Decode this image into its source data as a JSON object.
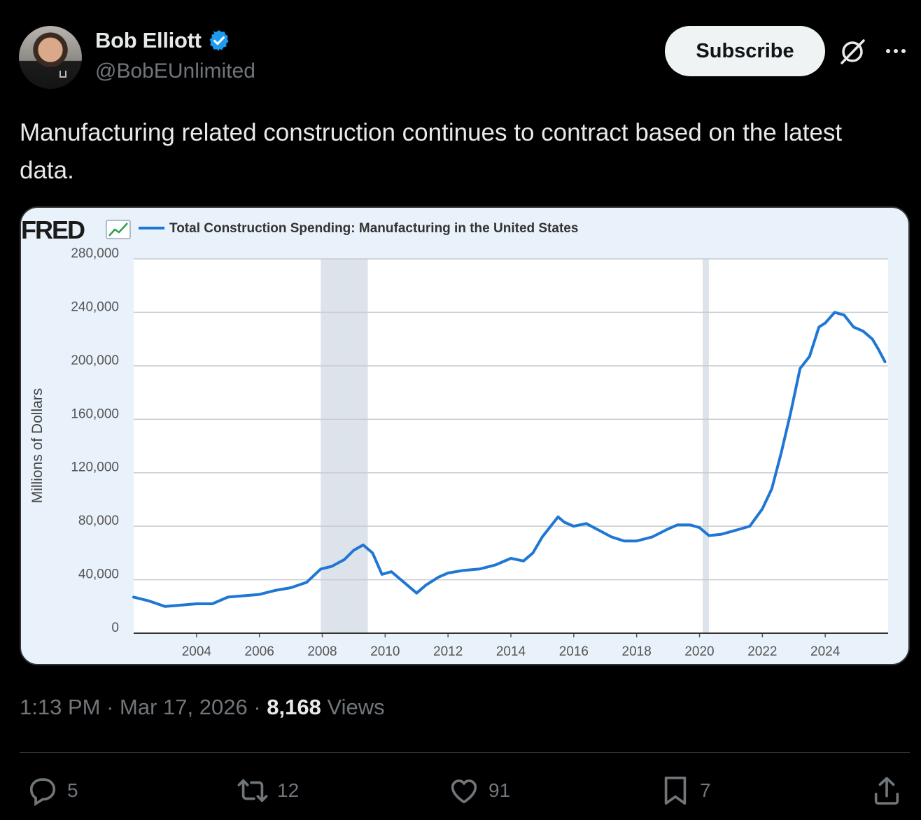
{
  "author": {
    "name": "Bob Elliott",
    "handle": "@BobEUnlimited",
    "verified": true
  },
  "header": {
    "subscribe_label": "Subscribe"
  },
  "tweet": {
    "text": "Manufacturing related construction continues to contract based on the latest data.",
    "time": "1:13 PM",
    "date": "Mar 17, 2026",
    "separator": "·",
    "views_count": "8,168",
    "views_label": "Views"
  },
  "actions": {
    "replies": "5",
    "reposts": "12",
    "likes": "91",
    "bookmarks": "7"
  },
  "colors": {
    "line": "#1f77d4",
    "recession": "#dde3ea",
    "accent_verified": "#1d9bf0"
  },
  "chart_data": {
    "type": "line",
    "source_logo": "FRED",
    "legend": "Total Construction Spending: Manufacturing in the United States",
    "ylabel": "Millions of Dollars",
    "ylim": [
      0,
      280000
    ],
    "xlim": [
      2002,
      2026
    ],
    "x_ticks": [
      "2004",
      "2006",
      "2008",
      "2010",
      "2012",
      "2014",
      "2016",
      "2018",
      "2020",
      "2022",
      "2024"
    ],
    "y_ticks": [
      "0",
      "40,000",
      "80,000",
      "120,000",
      "160,000",
      "200,000",
      "240,000",
      "280,000"
    ],
    "grid": true,
    "recessions": [
      [
        2007.95,
        2009.45
      ],
      [
        2020.1,
        2020.3
      ]
    ],
    "series": [
      {
        "x": [
          2002.0,
          2002.5,
          2003.0,
          2003.5,
          2004.0,
          2004.5,
          2005.0,
          2005.5,
          2006.0,
          2006.5,
          2007.0,
          2007.5,
          2007.95,
          2008.3,
          2008.7,
          2009.0,
          2009.3,
          2009.6,
          2009.9,
          2010.2,
          2010.6,
          2011.0,
          2011.3,
          2011.7,
          2012.0,
          2012.5,
          2013.0,
          2013.5,
          2014.0,
          2014.4,
          2014.7,
          2015.0,
          2015.3,
          2015.5,
          2015.7,
          2016.0,
          2016.4,
          2016.8,
          2017.2,
          2017.6,
          2018.0,
          2018.5,
          2019.0,
          2019.3,
          2019.7,
          2020.0,
          2020.3,
          2020.7,
          2021.0,
          2021.3,
          2021.6,
          2022.0,
          2022.3,
          2022.6,
          2022.9,
          2023.2,
          2023.5,
          2023.8,
          2024.0,
          2024.3,
          2024.6,
          2024.9,
          2025.2,
          2025.5,
          2025.7,
          2025.9
        ],
        "y": [
          27000,
          24000,
          20000,
          21000,
          22000,
          22000,
          27000,
          28000,
          29000,
          32000,
          34000,
          38000,
          48000,
          50000,
          55000,
          62000,
          66000,
          60000,
          44000,
          46000,
          38000,
          30000,
          36000,
          42000,
          45000,
          47000,
          48000,
          51000,
          56000,
          54000,
          60000,
          72000,
          81000,
          87000,
          83000,
          80000,
          82000,
          77000,
          72000,
          69000,
          69000,
          72000,
          78000,
          81000,
          81000,
          79000,
          73000,
          74000,
          76000,
          78000,
          80000,
          93000,
          108000,
          135000,
          165000,
          198000,
          207000,
          229000,
          232000,
          240000,
          238000,
          229000,
          226000,
          220000,
          212000,
          203000
        ]
      }
    ]
  }
}
